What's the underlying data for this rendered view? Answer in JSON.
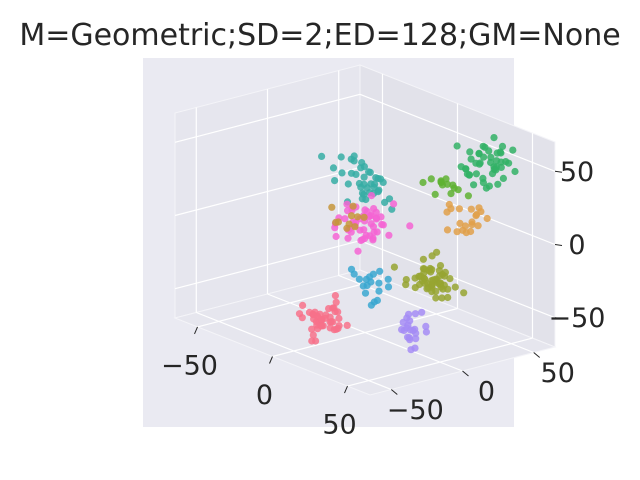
{
  "chart_data": {
    "type": "scatter",
    "projection": "3d",
    "title": "M=Geometric;SD=2;ED=128;GM=None",
    "xlabel": "",
    "ylabel": "",
    "zlabel": "",
    "xlim": [
      -65,
      65
    ],
    "ylim": [
      -65,
      65
    ],
    "zlim": [
      -70,
      70
    ],
    "x_ticks": [
      {
        "value": -50,
        "label": "−50"
      },
      {
        "value": 0,
        "label": "0"
      },
      {
        "value": 50,
        "label": "50"
      }
    ],
    "y_ticks": [
      {
        "value": -50,
        "label": "−50"
      },
      {
        "value": 0,
        "label": "0"
      },
      {
        "value": 50,
        "label": "50"
      }
    ],
    "z_ticks": [
      {
        "value": -50,
        "label": "−50"
      },
      {
        "value": 0,
        "label": "0"
      },
      {
        "value": 50,
        "label": "50"
      }
    ],
    "grid": true,
    "legend": "none",
    "background": "#EAEAF2",
    "series": [
      {
        "color": "#F77189",
        "center": [
          15,
          -45,
          -45
        ],
        "spread": [
          6,
          6,
          7
        ],
        "count": 45
      },
      {
        "color": "#36ADA4",
        "center": [
          -35,
          35,
          10
        ],
        "spread": [
          9,
          6,
          8
        ],
        "count": 40
      },
      {
        "color": "#F564D4",
        "center": [
          -15,
          15,
          -5
        ],
        "spread": [
          7,
          6,
          8
        ],
        "count": 50
      },
      {
        "color": "#32B166",
        "center": [
          40,
          45,
          50
        ],
        "spread": [
          7,
          6,
          8
        ],
        "count": 45
      },
      {
        "color": "#E1A04A",
        "center": [
          45,
          25,
          20
        ],
        "spread": [
          6,
          5,
          6
        ],
        "count": 20
      },
      {
        "color": "#A48CF4",
        "center": [
          55,
          -25,
          -40
        ],
        "spread": [
          6,
          5,
          6
        ],
        "count": 22
      },
      {
        "color": "#97A431",
        "center": [
          55,
          -10,
          -10
        ],
        "spread": [
          8,
          6,
          6
        ],
        "count": 55
      },
      {
        "color": "#39A7D0",
        "center": [
          20,
          -15,
          -25
        ],
        "spread": [
          6,
          5,
          6
        ],
        "count": 18
      },
      {
        "color": "#C5953B",
        "center": [
          -10,
          0,
          5
        ],
        "spread": [
          5,
          5,
          5
        ],
        "count": 10
      },
      {
        "color": "#5FB233",
        "center": [
          25,
          30,
          30
        ],
        "spread": [
          6,
          5,
          5
        ],
        "count": 14
      }
    ]
  }
}
